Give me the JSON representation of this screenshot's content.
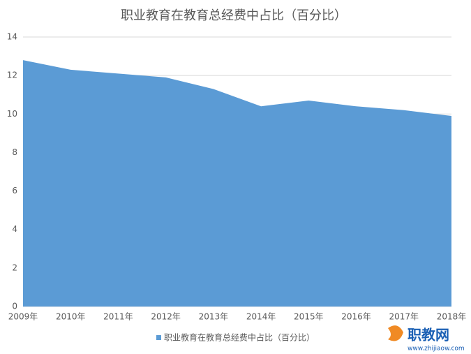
{
  "chart_data": {
    "type": "area",
    "title": "职业教育在教育总经费中占比（百分比）",
    "categories": [
      "2009年",
      "2010年",
      "2011年",
      "2012年",
      "2013年",
      "2014年",
      "2015年",
      "2016年",
      "2017年",
      "2018年"
    ],
    "series": [
      {
        "name": "职业教育在教育总经费中占比（百分比）",
        "color": "#5b9bd5",
        "values": [
          12.8,
          12.3,
          12.1,
          11.9,
          11.3,
          10.4,
          10.7,
          10.4,
          10.2,
          9.9
        ]
      }
    ],
    "ylim": [
      0,
      14
    ],
    "yticks": [
      0,
      2,
      4,
      6,
      8,
      10,
      12,
      14
    ],
    "grid": true,
    "legend": "bottom"
  },
  "watermark": {
    "name": "职教网",
    "url": "www.zhijiaow.com"
  }
}
